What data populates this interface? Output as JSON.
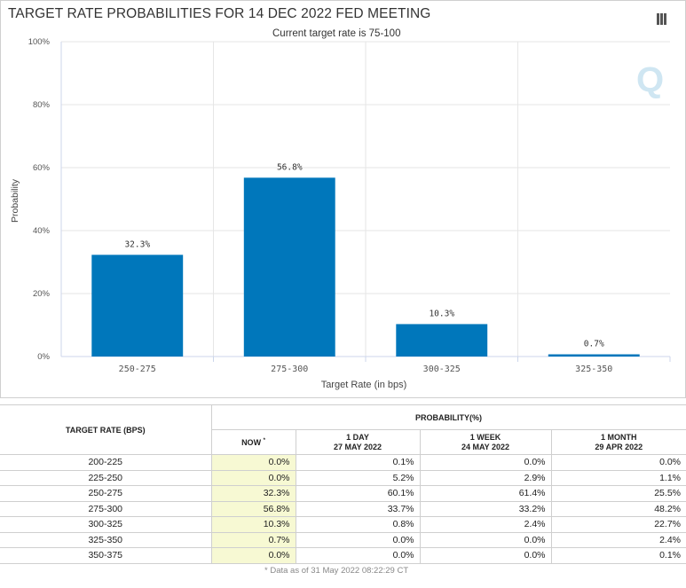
{
  "chart_data": {
    "type": "bar",
    "title": "TARGET RATE PROBABILITIES FOR 14 DEC 2022 FED MEETING",
    "subtitle": "Current target rate is 75-100",
    "xlabel": "Target Rate (in bps)",
    "ylabel": "Probability",
    "categories": [
      "250-275",
      "275-300",
      "300-325",
      "325-350"
    ],
    "values": [
      32.3,
      56.8,
      10.3,
      0.7
    ],
    "data_labels": [
      "32.3%",
      "56.8%",
      "10.3%",
      "0.7%"
    ],
    "y_ticks": [
      0,
      20,
      40,
      60,
      80,
      100
    ],
    "y_tick_labels": [
      "0%",
      "20%",
      "40%",
      "60%",
      "80%",
      "100%"
    ],
    "ylim": [
      0,
      100
    ],
    "grid": true,
    "bar_color": "#0077bb"
  },
  "menu_icon": "hamburger-menu-icon",
  "watermark_icon": "q-logo-watermark",
  "table": {
    "col_target_header": "TARGET RATE (BPS)",
    "probability_header": "PROBABILITY(%)",
    "now_label": "NOW",
    "now_marker": "*",
    "col1_line1": "1 DAY",
    "col1_line2": "27 MAY 2022",
    "col2_line1": "1 WEEK",
    "col2_line2": "24 MAY 2022",
    "col3_line1": "1 MONTH",
    "col3_line2": "29 APR 2022",
    "rows": [
      {
        "rate": "200-225",
        "now": "0.0%",
        "day": "0.1%",
        "week": "0.0%",
        "month": "0.0%"
      },
      {
        "rate": "225-250",
        "now": "0.0%",
        "day": "5.2%",
        "week": "2.9%",
        "month": "1.1%"
      },
      {
        "rate": "250-275",
        "now": "32.3%",
        "day": "60.1%",
        "week": "61.4%",
        "month": "25.5%"
      },
      {
        "rate": "275-300",
        "now": "56.8%",
        "day": "33.7%",
        "week": "33.2%",
        "month": "48.2%"
      },
      {
        "rate": "300-325",
        "now": "10.3%",
        "day": "0.8%",
        "week": "2.4%",
        "month": "22.7%"
      },
      {
        "rate": "325-350",
        "now": "0.7%",
        "day": "0.0%",
        "week": "0.0%",
        "month": "2.4%"
      },
      {
        "rate": "350-375",
        "now": "0.0%",
        "day": "0.0%",
        "week": "0.0%",
        "month": "0.1%"
      }
    ],
    "footnote": "* Data as of 31 May 2022 08:22:29 CT",
    "now_highlight_color": "#f7f9d3"
  }
}
